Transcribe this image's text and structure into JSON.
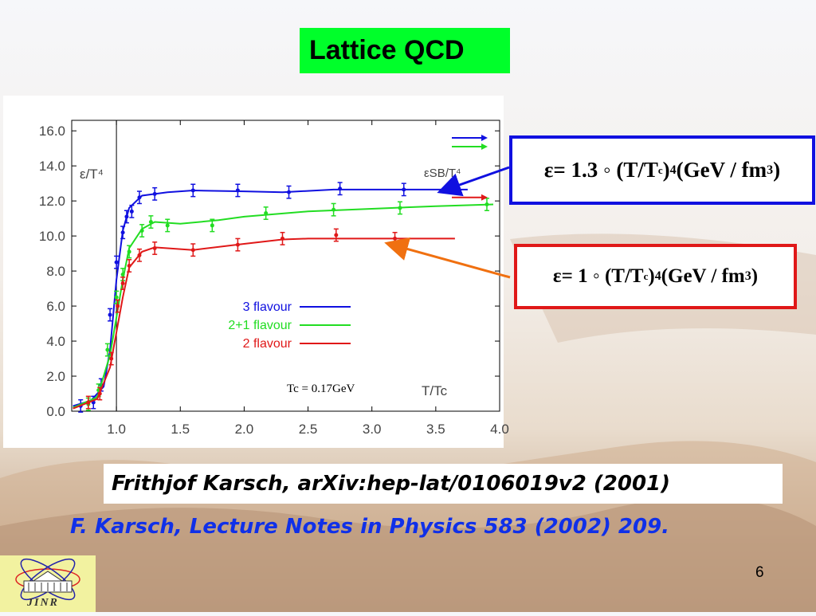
{
  "slide": {
    "title": "Lattice QCD",
    "formula_top": {
      "eps": "ε",
      "eq": " = 1.3 ◦ (T/T",
      "sub": "c",
      "pow": ")",
      "sup4": "4",
      "units": " (GeV / fm",
      "sup3": "3",
      "close": ")"
    },
    "formula_bottom": {
      "eps": "ε",
      "eq": " = 1 ◦ (T/T",
      "sub": "c",
      "pow": ")",
      "sup4": "4",
      "units": " (GeV / fm",
      "sup3": "3",
      "close": ")"
    },
    "citation_1": "Frithjof Karsch, arXiv:hep-lat/0106019v2 (2001)",
    "citation_2": "F. Karsch, Lecture Notes in Physics 583 (2002) 209.",
    "page_number": "6",
    "logo_text": "JINR",
    "colors": {
      "title_bg": "#00ff2a",
      "blue": "#1010e0",
      "red": "#e01818",
      "orange": "#f07010",
      "cite_blue": "#1030e8"
    }
  },
  "chart_data": {
    "type": "line",
    "ylabel": "ε/T⁴",
    "xlabel": "T/Tc",
    "sb_label": "εSB/T⁴",
    "tc_annotation": "Tc = 0.17GeV",
    "xlim": [
      0.65,
      4.0
    ],
    "ylim": [
      0.0,
      16.6
    ],
    "x_ticks": [
      "1.0",
      "1.5",
      "2.0",
      "2.5",
      "3.0",
      "3.5",
      "4.0"
    ],
    "x_tick_values": [
      1.0,
      1.5,
      2.0,
      2.5,
      3.0,
      3.5,
      4.0
    ],
    "y_ticks": [
      "0.0",
      "2.0",
      "4.0",
      "6.0",
      "8.0",
      "10.0",
      "12.0",
      "14.0",
      "16.0"
    ],
    "y_tick_values": [
      0,
      2,
      4,
      6,
      8,
      10,
      12,
      14,
      16
    ],
    "vertical_line_x": 1.0,
    "legend_position": "center-right",
    "series": [
      {
        "name": "3 flavour",
        "color": "#1010e0",
        "sb_limit": 15.6,
        "curve": [
          [
            0.66,
            0.3
          ],
          [
            0.8,
            0.6
          ],
          [
            0.9,
            1.4
          ],
          [
            0.95,
            3.5
          ],
          [
            1.0,
            7.5
          ],
          [
            1.05,
            10.3
          ],
          [
            1.1,
            11.6
          ],
          [
            1.2,
            12.3
          ],
          [
            1.4,
            12.5
          ],
          [
            1.6,
            12.6
          ],
          [
            2.0,
            12.55
          ],
          [
            2.3,
            12.5
          ],
          [
            2.7,
            12.65
          ],
          [
            3.2,
            12.65
          ],
          [
            3.75,
            12.65
          ]
        ],
        "points": [
          [
            0.72,
            0.3
          ],
          [
            0.82,
            0.5
          ],
          [
            0.88,
            1.5
          ],
          [
            0.95,
            5.5
          ],
          [
            1.0,
            8.5
          ],
          [
            1.05,
            10.2
          ],
          [
            1.08,
            11.1
          ],
          [
            1.12,
            11.4
          ],
          [
            1.18,
            12.2
          ],
          [
            1.3,
            12.4
          ],
          [
            1.6,
            12.6
          ],
          [
            1.95,
            12.6
          ],
          [
            2.35,
            12.5
          ],
          [
            2.75,
            12.7
          ],
          [
            3.25,
            12.65
          ]
        ]
      },
      {
        "name": "2+1 flavour",
        "color": "#22dd22",
        "sb_limit": 15.1,
        "curve": [
          [
            0.66,
            0.2
          ],
          [
            0.85,
            0.8
          ],
          [
            0.95,
            3.2
          ],
          [
            1.05,
            7.5
          ],
          [
            1.1,
            9.3
          ],
          [
            1.2,
            10.4
          ],
          [
            1.3,
            10.8
          ],
          [
            1.5,
            10.7
          ],
          [
            1.8,
            10.9
          ],
          [
            2.0,
            11.1
          ],
          [
            2.5,
            11.4
          ],
          [
            3.0,
            11.55
          ],
          [
            3.5,
            11.7
          ],
          [
            3.95,
            11.8
          ]
        ],
        "points": [
          [
            0.78,
            0.4
          ],
          [
            0.86,
            1.2
          ],
          [
            0.93,
            3.5
          ],
          [
            1.0,
            6.5
          ],
          [
            1.05,
            7.8
          ],
          [
            1.1,
            9.1
          ],
          [
            1.2,
            10.3
          ],
          [
            1.27,
            10.8
          ],
          [
            1.4,
            10.6
          ],
          [
            1.75,
            10.6
          ],
          [
            2.17,
            11.3
          ],
          [
            2.7,
            11.5
          ],
          [
            3.22,
            11.6
          ],
          [
            3.9,
            11.8
          ]
        ]
      },
      {
        "name": "2 flavour",
        "color": "#e01818",
        "sb_limit": 12.2,
        "curve": [
          [
            0.66,
            0.15
          ],
          [
            0.85,
            0.7
          ],
          [
            0.95,
            2.5
          ],
          [
            1.05,
            6.5
          ],
          [
            1.1,
            8.2
          ],
          [
            1.2,
            9.1
          ],
          [
            1.3,
            9.35
          ],
          [
            1.6,
            9.2
          ],
          [
            2.0,
            9.55
          ],
          [
            2.3,
            9.8
          ],
          [
            2.5,
            9.85
          ],
          [
            3.0,
            9.85
          ],
          [
            3.65,
            9.85
          ]
        ],
        "points": [
          [
            0.78,
            0.5
          ],
          [
            0.87,
            1.0
          ],
          [
            0.96,
            3.0
          ],
          [
            1.01,
            6.0
          ],
          [
            1.05,
            7.3
          ],
          [
            1.1,
            8.3
          ],
          [
            1.18,
            8.9
          ],
          [
            1.3,
            9.3
          ],
          [
            1.6,
            9.2
          ],
          [
            1.95,
            9.5
          ],
          [
            2.3,
            9.85
          ],
          [
            2.72,
            10.05
          ],
          [
            3.18,
            9.85
          ]
        ]
      }
    ]
  }
}
